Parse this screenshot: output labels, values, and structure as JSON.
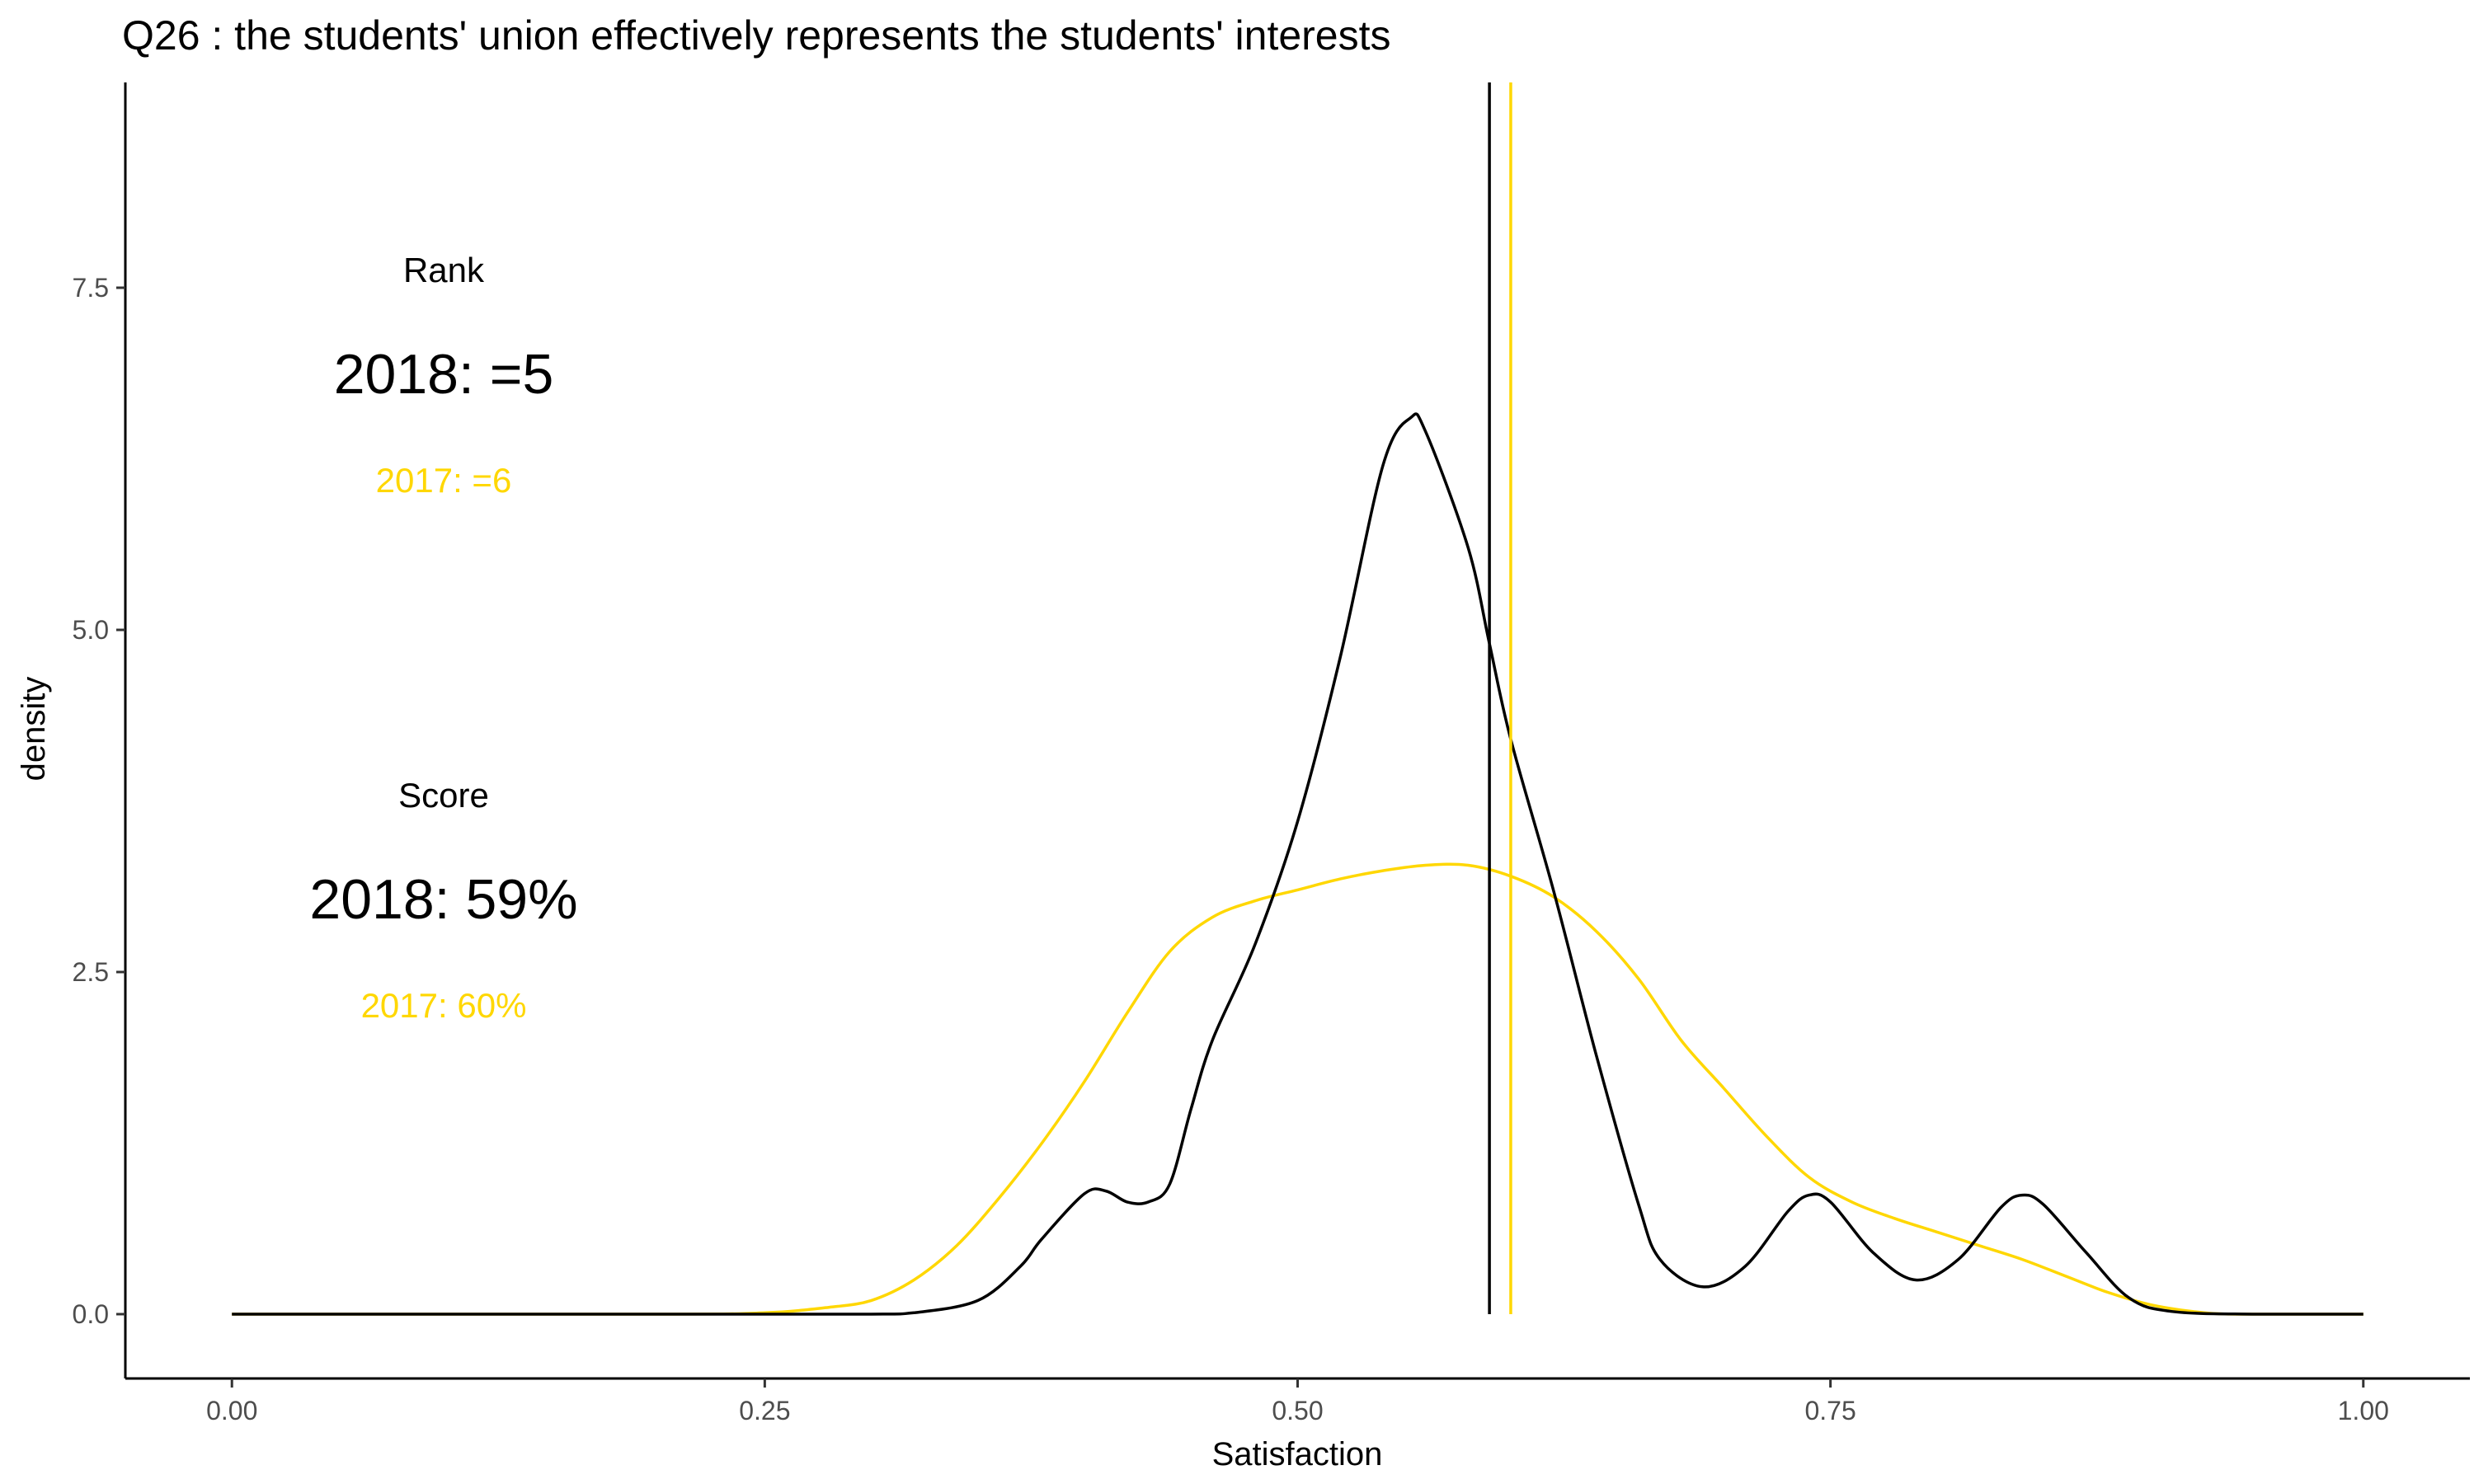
{
  "chart_data": {
    "type": "line",
    "title": "Q26 :   the students' union effectively represents the students' interests",
    "xlabel": "Satisfaction",
    "ylabel": "density",
    "xlim": [
      -0.05,
      1.05
    ],
    "ylim": [
      -0.47,
      9.0
    ],
    "x_ticks": [
      0.0,
      0.25,
      0.5,
      0.75,
      1.0
    ],
    "x_tick_labels": [
      "0.00",
      "0.25",
      "0.50",
      "0.75",
      "1.00"
    ],
    "y_ticks": [
      0.0,
      2.5,
      5.0,
      7.5
    ],
    "y_tick_labels": [
      "0.0",
      "2.5",
      "5.0",
      "7.5"
    ],
    "grid": false,
    "legend": "none",
    "colors": {
      "2018": "#000000",
      "2017": "#FFD700"
    },
    "series": [
      {
        "color": "#000000",
        "x": [
          0.0,
          0.1,
          0.2,
          0.3,
          0.32,
          0.35,
          0.37,
          0.38,
          0.4,
          0.41,
          0.42,
          0.43,
          0.44,
          0.45,
          0.46,
          0.48,
          0.5,
          0.52,
          0.54,
          0.553,
          0.56,
          0.58,
          0.59,
          0.6,
          0.62,
          0.64,
          0.66,
          0.67,
          0.69,
          0.71,
          0.73,
          0.74,
          0.75,
          0.77,
          0.79,
          0.81,
          0.83,
          0.84,
          0.85,
          0.87,
          0.89,
          0.91,
          0.95,
          1.0
        ],
        "y": [
          0.0,
          0.0,
          0.0,
          0.0,
          0.01,
          0.1,
          0.35,
          0.55,
          0.88,
          0.9,
          0.82,
          0.82,
          0.95,
          1.5,
          2.0,
          2.7,
          3.6,
          4.8,
          6.2,
          6.55,
          6.45,
          5.6,
          4.9,
          4.2,
          3.1,
          1.9,
          0.8,
          0.4,
          0.2,
          0.35,
          0.75,
          0.87,
          0.82,
          0.45,
          0.25,
          0.4,
          0.78,
          0.87,
          0.8,
          0.45,
          0.12,
          0.02,
          0.0,
          0.0
        ]
      },
      {
        "color": "#FFD700",
        "x": [
          0.0,
          0.2,
          0.25,
          0.28,
          0.3,
          0.32,
          0.34,
          0.36,
          0.38,
          0.4,
          0.42,
          0.44,
          0.46,
          0.48,
          0.5,
          0.52,
          0.54,
          0.56,
          0.58,
          0.6,
          0.62,
          0.64,
          0.66,
          0.68,
          0.7,
          0.72,
          0.74,
          0.76,
          0.78,
          0.8,
          0.82,
          0.84,
          0.86,
          0.88,
          0.9,
          0.92,
          0.94,
          1.0
        ],
        "y": [
          0.0,
          0.0,
          0.01,
          0.05,
          0.1,
          0.25,
          0.5,
          0.85,
          1.25,
          1.7,
          2.2,
          2.65,
          2.9,
          3.02,
          3.1,
          3.18,
          3.24,
          3.28,
          3.28,
          3.2,
          3.05,
          2.8,
          2.45,
          2.0,
          1.65,
          1.3,
          1.0,
          0.82,
          0.7,
          0.6,
          0.5,
          0.4,
          0.28,
          0.16,
          0.07,
          0.02,
          0.0,
          0.0
        ]
      }
    ],
    "vlines": [
      {
        "x": 0.59,
        "color": "#000000"
      },
      {
        "x": 0.6,
        "color": "#FFD700"
      }
    ],
    "annotations": {
      "rank_label": "Rank",
      "rank_2018": "2018: =5",
      "rank_2017": "2017: =6",
      "score_label": "Score",
      "score_2018": "2018: 59%",
      "score_2017": "2017: 60%"
    }
  }
}
